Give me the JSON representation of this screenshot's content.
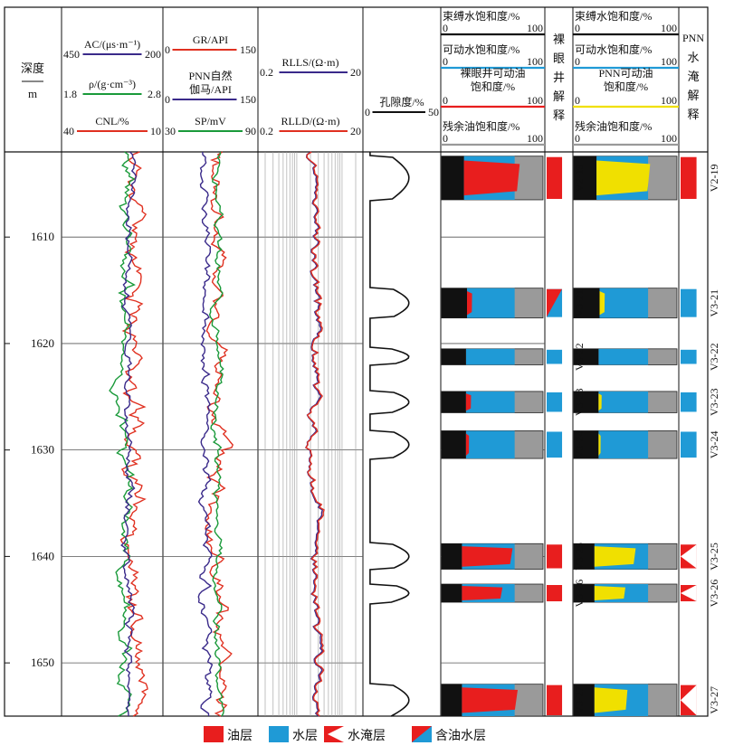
{
  "chart_data": {
    "type": "well-log",
    "depth_header": {
      "label": "深度",
      "unit": "m"
    },
    "depth_range": [
      1602,
      1655
    ],
    "depth_ticks": [
      1610,
      1620,
      1630,
      1640,
      1650
    ],
    "tracks": [
      {
        "curves": [
          {
            "name": "AC/(μs·m⁻¹)",
            "scale": [
              450,
              200
            ],
            "color": "#3a2a8a"
          },
          {
            "name": "ρ/(g·cm⁻³)",
            "scale": [
              1.8,
              2.8
            ],
            "color": "#1a9a3a"
          },
          {
            "name": "CNL/%",
            "scale": [
              40,
              10
            ],
            "color": "#e03020"
          }
        ]
      },
      {
        "curves": [
          {
            "name": "GR/API",
            "scale": [
              0,
              150
            ],
            "color": "#e03020"
          },
          {
            "name": "PNN自然伽马/API",
            "name_l1": "PNN自然",
            "name_l2": "伽马/API",
            "scale": [
              0,
              150
            ],
            "color": "#3a2a8a"
          },
          {
            "name": "SP/mV",
            "scale": [
              30,
              90
            ],
            "color": "#1a9a3a"
          }
        ]
      },
      {
        "curves": [
          {
            "name": "RLLS/(Ω·m)",
            "scale": [
              0.2,
              20
            ],
            "color": "#3a2a8a"
          },
          {
            "name": "RLLD/(Ω·m)",
            "scale": [
              0.2,
              20
            ],
            "color": "#e03020"
          }
        ]
      },
      {
        "curves": [
          {
            "name": "孔隙度/%",
            "scale": [
              0,
              50
            ],
            "color": "#111111"
          }
        ]
      }
    ],
    "openhole_saturation": {
      "headers": [
        {
          "name": "束缚水饱和度/%",
          "scale": [
            0,
            100
          ],
          "color": "#111111"
        },
        {
          "name": "可动水饱和度/%",
          "scale": [
            0,
            100
          ],
          "color": "#1f9ad6"
        },
        {
          "name_l1": "裸眼井可动油",
          "name_l2": "饱和度/%",
          "scale": [
            0,
            100
          ],
          "color": "#e81e1e"
        },
        {
          "name": "残余油饱和度/%",
          "scale": [
            0,
            100
          ],
          "color": "#9a9a9a"
        }
      ],
      "interpretation_header": "裸眼井解释"
    },
    "pnn_saturation": {
      "headers": [
        {
          "name": "束缚水饱和度/%",
          "scale": [
            0,
            100
          ],
          "color": "#111111"
        },
        {
          "name": "可动水饱和度/%",
          "scale": [
            0,
            100
          ],
          "color": "#1f9ad6"
        },
        {
          "name_l1": "PNN可动油",
          "name_l2": "饱和度/%",
          "scale": [
            0,
            100
          ],
          "color": "#f0e000"
        },
        {
          "name": "残余油饱和度/%",
          "scale": [
            0,
            100
          ],
          "color": "#9a9a9a"
        }
      ],
      "interpretation_header": "PNN水淹解释"
    },
    "layers": [
      {
        "name": "V2-19",
        "top": 1602.4,
        "bottom": 1606.5,
        "bound_water": 22,
        "openhole_movable_oil": 55,
        "pnn_movable_oil": 52,
        "openhole_result": "油层",
        "pnn_result": "油层"
      },
      {
        "name": "V3-21",
        "top": 1614.8,
        "bottom": 1617.6,
        "bound_water": 25,
        "openhole_movable_oil": 5,
        "pnn_movable_oil": 5,
        "openhole_result": "含油水层",
        "pnn_result": "水层"
      },
      {
        "name": "V3-22",
        "top": 1620.5,
        "bottom": 1622.0,
        "bound_water": 24,
        "openhole_movable_oil": 0,
        "pnn_movable_oil": 0,
        "openhole_result": "水层",
        "pnn_result": "水层"
      },
      {
        "name": "V3-23",
        "top": 1624.5,
        "bottom": 1626.5,
        "bound_water": 24,
        "openhole_movable_oil": 5,
        "pnn_movable_oil": 3,
        "openhole_result": "水层",
        "pnn_result": "水层"
      },
      {
        "name": "V3-24",
        "top": 1628.2,
        "bottom": 1630.8,
        "bound_water": 24,
        "openhole_movable_oil": 3,
        "pnn_movable_oil": 2,
        "openhole_result": "水层",
        "pnn_result": "水层"
      },
      {
        "name": "V3-25",
        "top": 1638.8,
        "bottom": 1641.2,
        "bound_water": 20,
        "openhole_movable_oil": 50,
        "pnn_movable_oil": 40,
        "openhole_result": "油层",
        "pnn_result": "水淹层"
      },
      {
        "name": "V3-26",
        "top": 1642.6,
        "bottom": 1644.3,
        "bound_water": 20,
        "openhole_movable_oil": 40,
        "pnn_movable_oil": 30,
        "openhole_result": "油层",
        "pnn_result": "水淹层"
      },
      {
        "name": "V3-27",
        "top": 1652.0,
        "bottom": 1655.0,
        "bound_water": 20,
        "openhole_movable_oil": 55,
        "pnn_movable_oil": 32,
        "openhole_result": "油层",
        "pnn_result": "水淹层"
      }
    ],
    "legend": [
      {
        "key": "oil",
        "label": "油层",
        "color": "#e81e1e"
      },
      {
        "key": "water",
        "label": "水层",
        "color": "#1f9ad6"
      },
      {
        "key": "flooded",
        "label": "水淹层",
        "color": "#e81e1e"
      },
      {
        "key": "oilwater",
        "label": "含油水层",
        "color": "#1f9ad6"
      }
    ]
  }
}
